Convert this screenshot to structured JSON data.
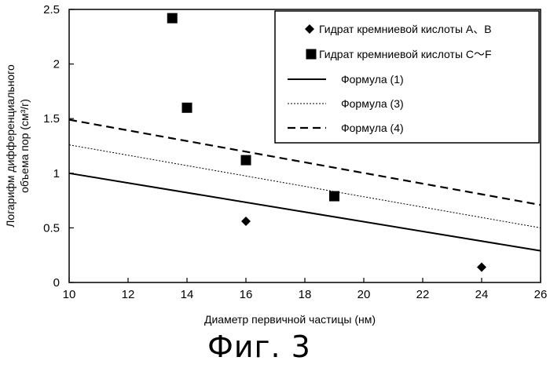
{
  "figure_caption": "Фиг. 3",
  "chart_data": {
    "type": "scatter",
    "xlabel": "Диаметр первичной частицы (нм)",
    "ylabel_line1": "Логарифм дифференциального",
    "ylabel_line2": "объема пор (см³/г)",
    "xlim": [
      10,
      26
    ],
    "ylim": [
      0,
      2.5
    ],
    "xticks": [
      "10",
      "12",
      "14",
      "16",
      "18",
      "20",
      "22",
      "24",
      "26"
    ],
    "yticks": [
      "0",
      "0.5",
      "1",
      "1.5",
      "2",
      "2.5"
    ],
    "grid": false,
    "legend_position": "top-right",
    "series": [
      {
        "name": "Гидрат кремниевой кислоты A、B",
        "marker": "diamond",
        "x": [
          16,
          24
        ],
        "y": [
          0.56,
          0.14
        ]
      },
      {
        "name": "Гидрат кремниевой кислоты C〜F",
        "marker": "square",
        "x": [
          13.5,
          14,
          16,
          19
        ],
        "y": [
          2.42,
          1.6,
          1.12,
          0.79
        ]
      },
      {
        "name": "Формула (1)",
        "style": "solid",
        "x": [
          10,
          26
        ],
        "y": [
          1.0,
          0.29
        ]
      },
      {
        "name": "Формула (3)",
        "style": "dotted",
        "x": [
          10,
          26
        ],
        "y": [
          1.26,
          0.5
        ]
      },
      {
        "name": "Формула (4)",
        "style": "dashed",
        "x": [
          10,
          26
        ],
        "y": [
          1.49,
          0.71
        ]
      }
    ]
  }
}
